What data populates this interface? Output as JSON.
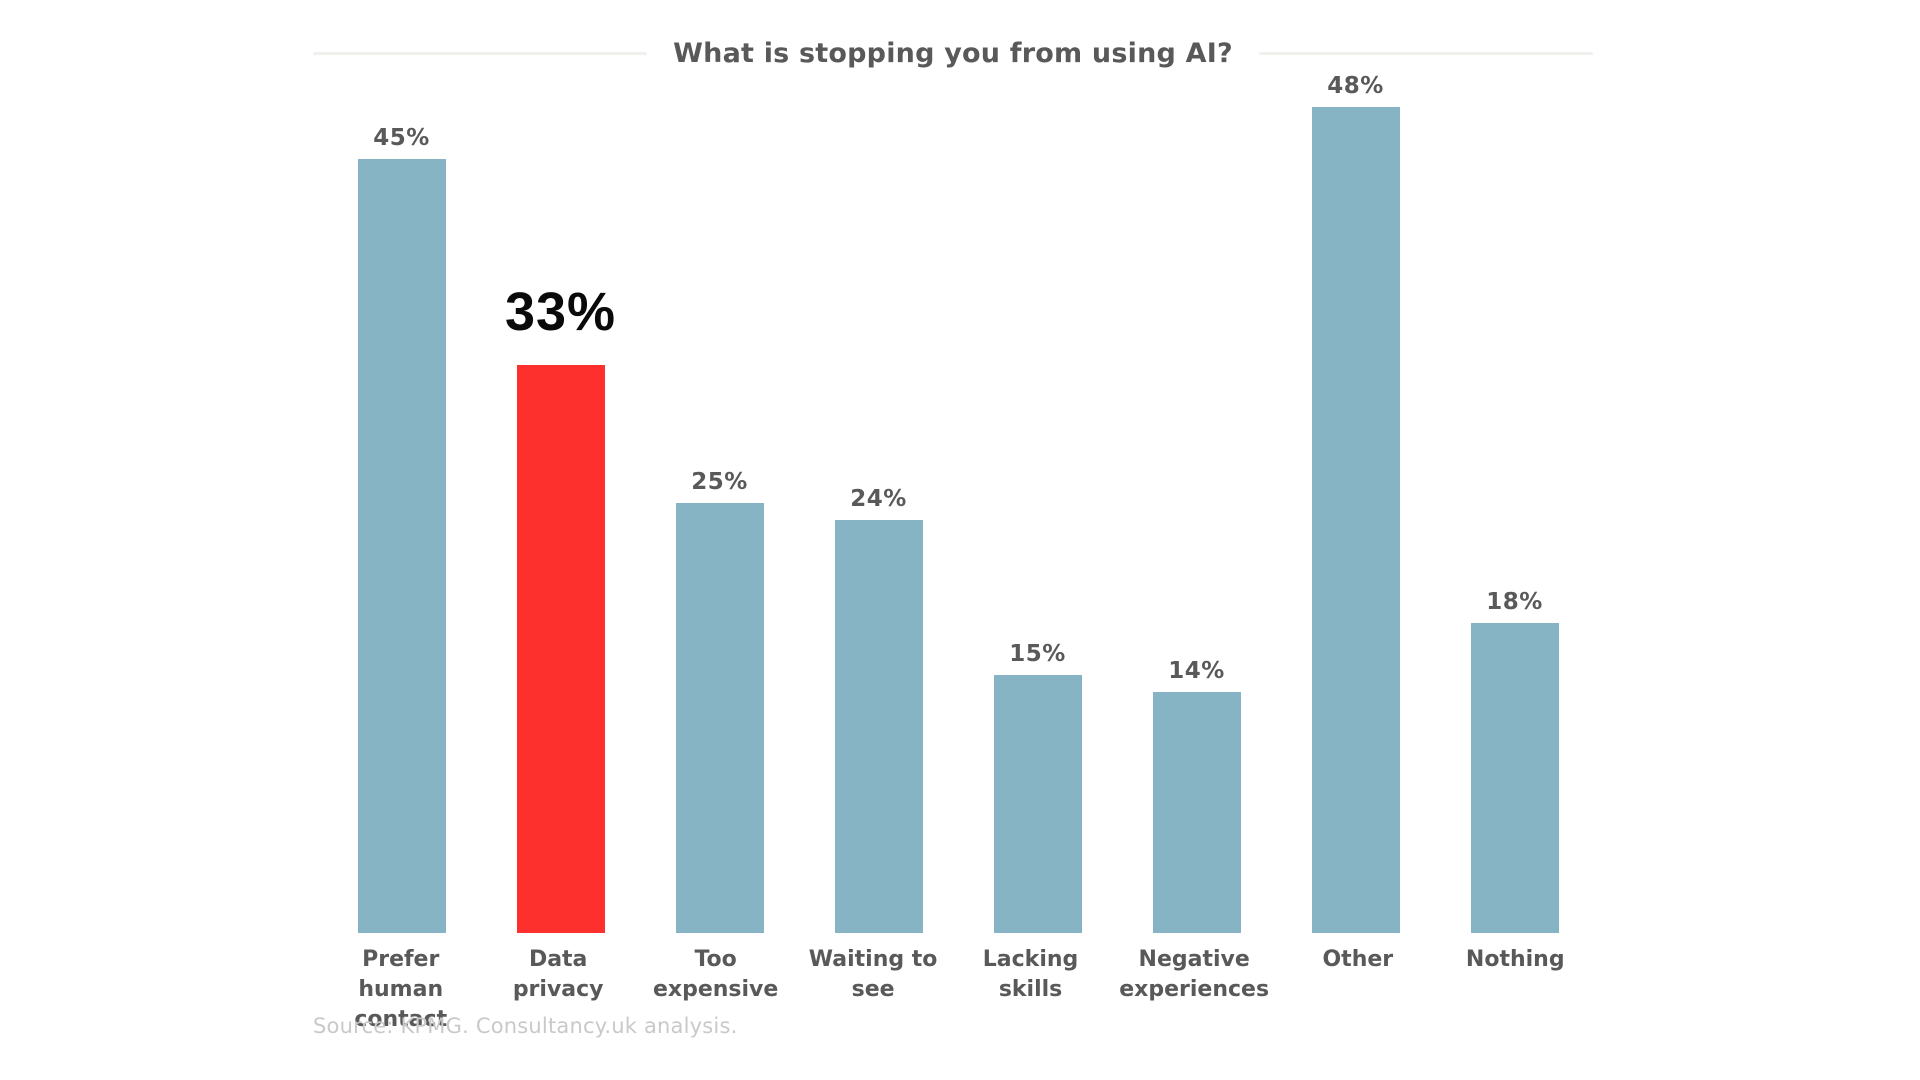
{
  "page": {
    "background_color": "#ffffff"
  },
  "header": {
    "title": "What is stopping you from using AI?"
  },
  "source_note": "Source: KPMG. Consultancy.uk analysis.",
  "chart_data": {
    "type": "bar",
    "title": "What is stopping you from using AI?",
    "categories": [
      "Prefer human contact",
      "Data privacy",
      "Too expensive",
      "Waiting to see",
      "Lacking skills",
      "Negative experiences",
      "Other",
      "Nothing"
    ],
    "values": [
      45,
      33,
      25,
      24,
      15,
      14,
      48,
      18
    ],
    "value_labels": [
      "45%",
      "33%",
      "25%",
      "24%",
      "15%",
      "14%",
      "48%",
      "18%"
    ],
    "unit": "%",
    "highlighted_category": "Data privacy",
    "highlighted_index": 1,
    "bar_color": "#86b4c4",
    "highlight_color": "#fd302d",
    "value_label_color": "#595959",
    "highlight_value_label_color": "#0a0a0a",
    "category_label_color": "#595959",
    "title_color": "#595959",
    "source_color": "#c9c9c9",
    "ylim": [
      0,
      50
    ],
    "grid": false,
    "legend": false,
    "axis_lines": false,
    "xlabel": "",
    "ylabel": ""
  }
}
